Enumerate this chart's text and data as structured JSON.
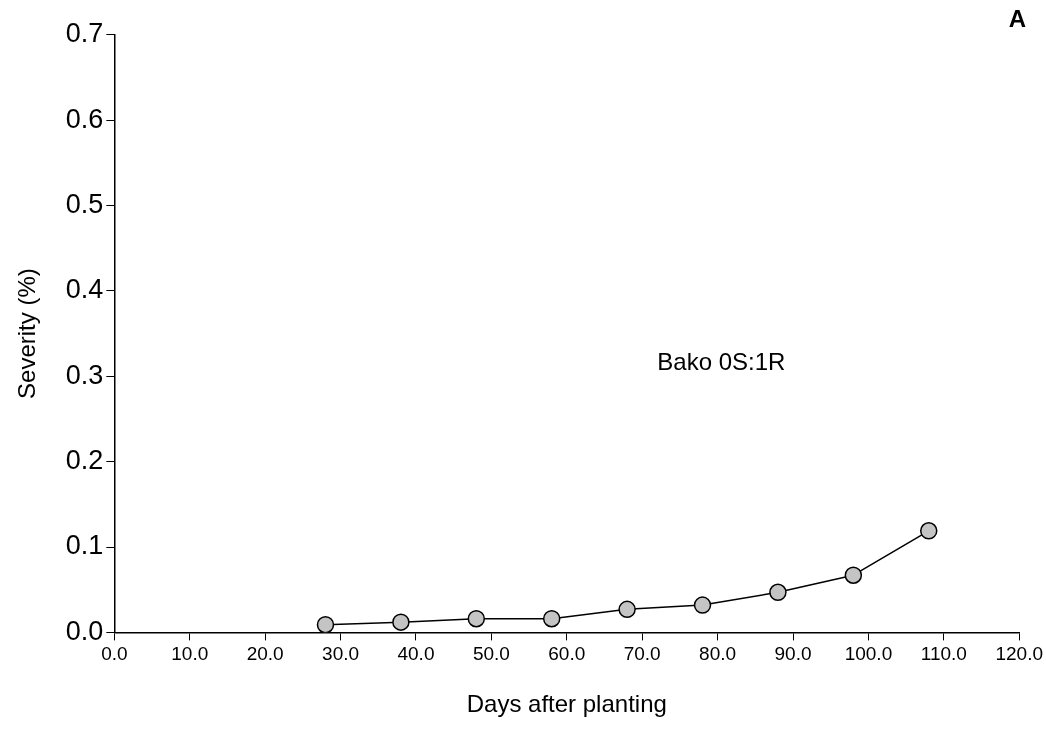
{
  "chart_data": {
    "type": "line",
    "title": "A",
    "xlabel": "Days after planting",
    "ylabel": "Severity (%)",
    "annotations": [
      "Bako 0S:1R"
    ],
    "x": [
      28,
      38,
      48,
      58,
      68,
      78,
      88,
      98,
      108
    ],
    "series": [
      {
        "color": "#000000",
        "values": [
          0.009,
          0.012,
          0.016,
          0.016,
          0.027,
          0.032,
          0.047,
          0.067,
          0.119
        ]
      }
    ],
    "xlim": [
      0,
      120
    ],
    "xticks": [
      {
        "value": 0,
        "label": "0.0"
      },
      {
        "value": 10,
        "label": "10.0"
      },
      {
        "value": 20,
        "label": "20.0"
      },
      {
        "value": 30,
        "label": "30.0"
      },
      {
        "value": 40,
        "label": "40.0"
      },
      {
        "value": 50,
        "label": "50.0"
      },
      {
        "value": 60,
        "label": "60.0"
      },
      {
        "value": 70,
        "label": "70.0"
      },
      {
        "value": 80,
        "label": "80.0"
      },
      {
        "value": 90,
        "label": "90.0"
      },
      {
        "value": 100,
        "label": "100.0"
      },
      {
        "value": 110,
        "label": "110.0"
      },
      {
        "value": 120,
        "label": "120.0"
      }
    ],
    "ylim": [
      0,
      0.7
    ],
    "yticks": [
      {
        "value": 0,
        "label": "0.0"
      },
      0.1,
      0.2,
      0.3,
      0.4,
      0.5,
      0.6,
      0.7
    ],
    "grid": false,
    "legend": false,
    "marker": "circle",
    "line_style": "solid"
  }
}
